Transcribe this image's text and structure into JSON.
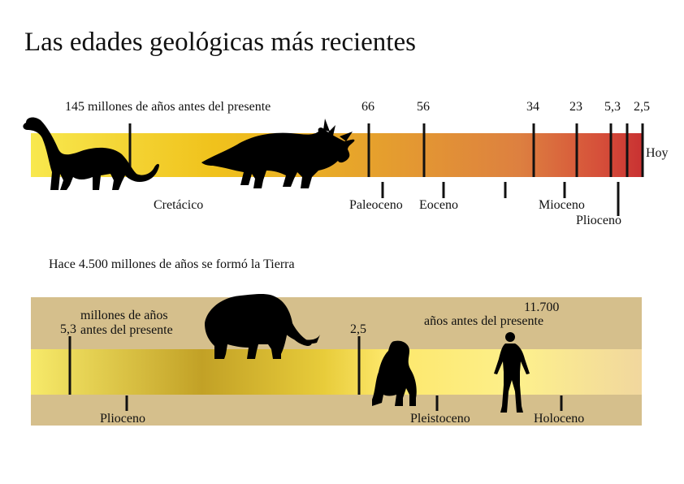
{
  "title": "Las edades geológicas más recientes",
  "timeline1": {
    "start_label": "145 millones de años antes del presente",
    "ticks": [
      "66",
      "56",
      "34",
      "23",
      "5,3",
      "2,5"
    ],
    "end_label": "Hoy",
    "periods": {
      "cretaceous": "Cretácico",
      "paleocene": "Paleoceno",
      "eocene": "Eoceno",
      "miocene": "Mioceno",
      "pliocene": "Plioceno"
    },
    "silhouettes": [
      "brachiosaurus-silhouette",
      "triceratops-silhouette"
    ]
  },
  "timeline2": {
    "intro": "Hace 4.500 millones de años se formó la Tierra",
    "tick_left": "5,3",
    "unit_left": "millones de años antes del presente",
    "tick_mid": "2,5",
    "tick_right_value": "11.700",
    "unit_right": "años antes del presente",
    "periods": {
      "pliocene": "Plioceno",
      "pleistocene": "Pleistoceno",
      "holocene": "Holoceno"
    },
    "silhouettes": [
      "mammoth-silhouette",
      "ape-silhouette",
      "human-silhouette"
    ]
  },
  "colors": {
    "bar1_start": "#f7e34a",
    "bar1_mid": "#e89a2e",
    "bar1_end": "#d03a34",
    "bar2_band": "#d4bd8a",
    "bar2_gold": "#b89a22",
    "bar2_light": "#fff17a"
  }
}
